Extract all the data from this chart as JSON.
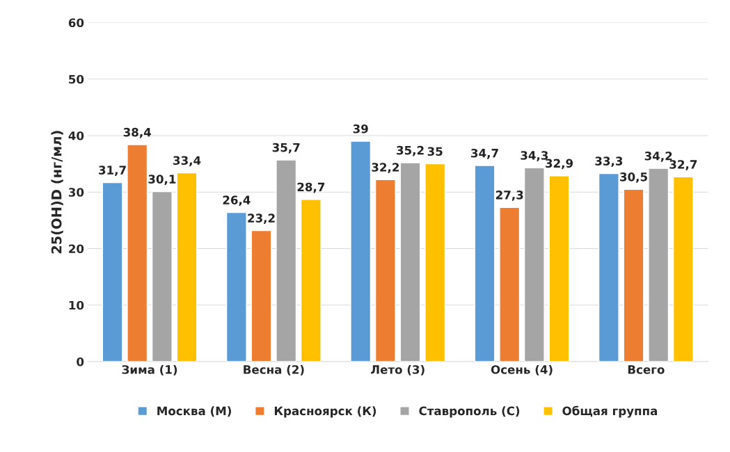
{
  "chart_data": {
    "type": "bar",
    "ylabel": "25(OH)D (нг/мл)",
    "categories": [
      "Зима (1)",
      "Весна (2)",
      "Лето (3)",
      "Осень (4)",
      "Всего"
    ],
    "series": [
      {
        "name": "Москва (М)",
        "color": "#5b9bd5",
        "values": [
          31.7,
          26.4,
          39,
          34.7,
          33.3
        ],
        "value_labels": [
          "31,7",
          "26,4",
          "39",
          "34,7",
          "33,3"
        ]
      },
      {
        "name": "Красноярск (К)",
        "color": "#ed7d31",
        "values": [
          38.4,
          23.2,
          32.2,
          27.3,
          30.5
        ],
        "value_labels": [
          "38,4",
          "23,2",
          "32,2",
          "27,3",
          "30,5"
        ]
      },
      {
        "name": "Ставрополь (С)",
        "color": "#a5a5a5",
        "values": [
          30.1,
          35.7,
          35.2,
          34.3,
          34.2
        ],
        "value_labels": [
          "30,1",
          "35,7",
          "35,2",
          "34,3",
          "34,2"
        ]
      },
      {
        "name": "Общая группа",
        "color": "#ffc000",
        "values": [
          33.4,
          28.7,
          35,
          32.9,
          32.7
        ],
        "value_labels": [
          "33,4",
          "28,7",
          "35",
          "32,9",
          "32,7"
        ]
      }
    ],
    "ylim": [
      0,
      60
    ],
    "yticks": [
      0,
      10,
      20,
      30,
      40,
      50,
      60
    ],
    "grid": "y",
    "legend": "bottom"
  }
}
